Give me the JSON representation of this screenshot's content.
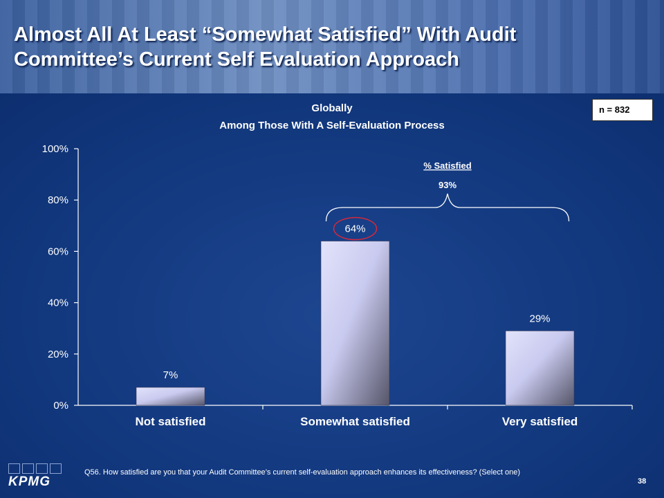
{
  "title": "Almost All At Least “Somewhat Satisfied” With Audit Committee’s Current Self Evaluation Approach",
  "subtitle_line1": "Globally",
  "subtitle_line2": "Among Those With A Self-Evaluation Process",
  "sample_size": "n = 832",
  "footnote": "Q56. How satisfied are you that your Audit Committee’s current self-evaluation approach enhances its effectiveness? (Select one)",
  "page_number": "38",
  "logo_text": "KPMG",
  "colors": {
    "background": "#10357a",
    "bar_light": "#cfd0f2",
    "bar_dark": "#555569",
    "highlight_circle": "#d8283a"
  },
  "chart_data": {
    "type": "bar",
    "categories": [
      "Not satisfied",
      "Somewhat satisfied",
      "Very satisfied"
    ],
    "values": [
      7,
      64,
      29
    ],
    "value_labels": [
      "7%",
      "64%",
      "29%"
    ],
    "ylim": [
      0,
      100
    ],
    "yticks": [
      0,
      20,
      40,
      60,
      80,
      100
    ],
    "ytick_labels": [
      "0%",
      "20%",
      "40%",
      "60%",
      "80%",
      "100%"
    ],
    "highlighted_category": "Somewhat satisfied",
    "annotation": {
      "heading": "% Satisfied",
      "value": "93%",
      "spans": [
        "Somewhat satisfied",
        "Very satisfied"
      ]
    },
    "legend": "none",
    "grid": false
  }
}
